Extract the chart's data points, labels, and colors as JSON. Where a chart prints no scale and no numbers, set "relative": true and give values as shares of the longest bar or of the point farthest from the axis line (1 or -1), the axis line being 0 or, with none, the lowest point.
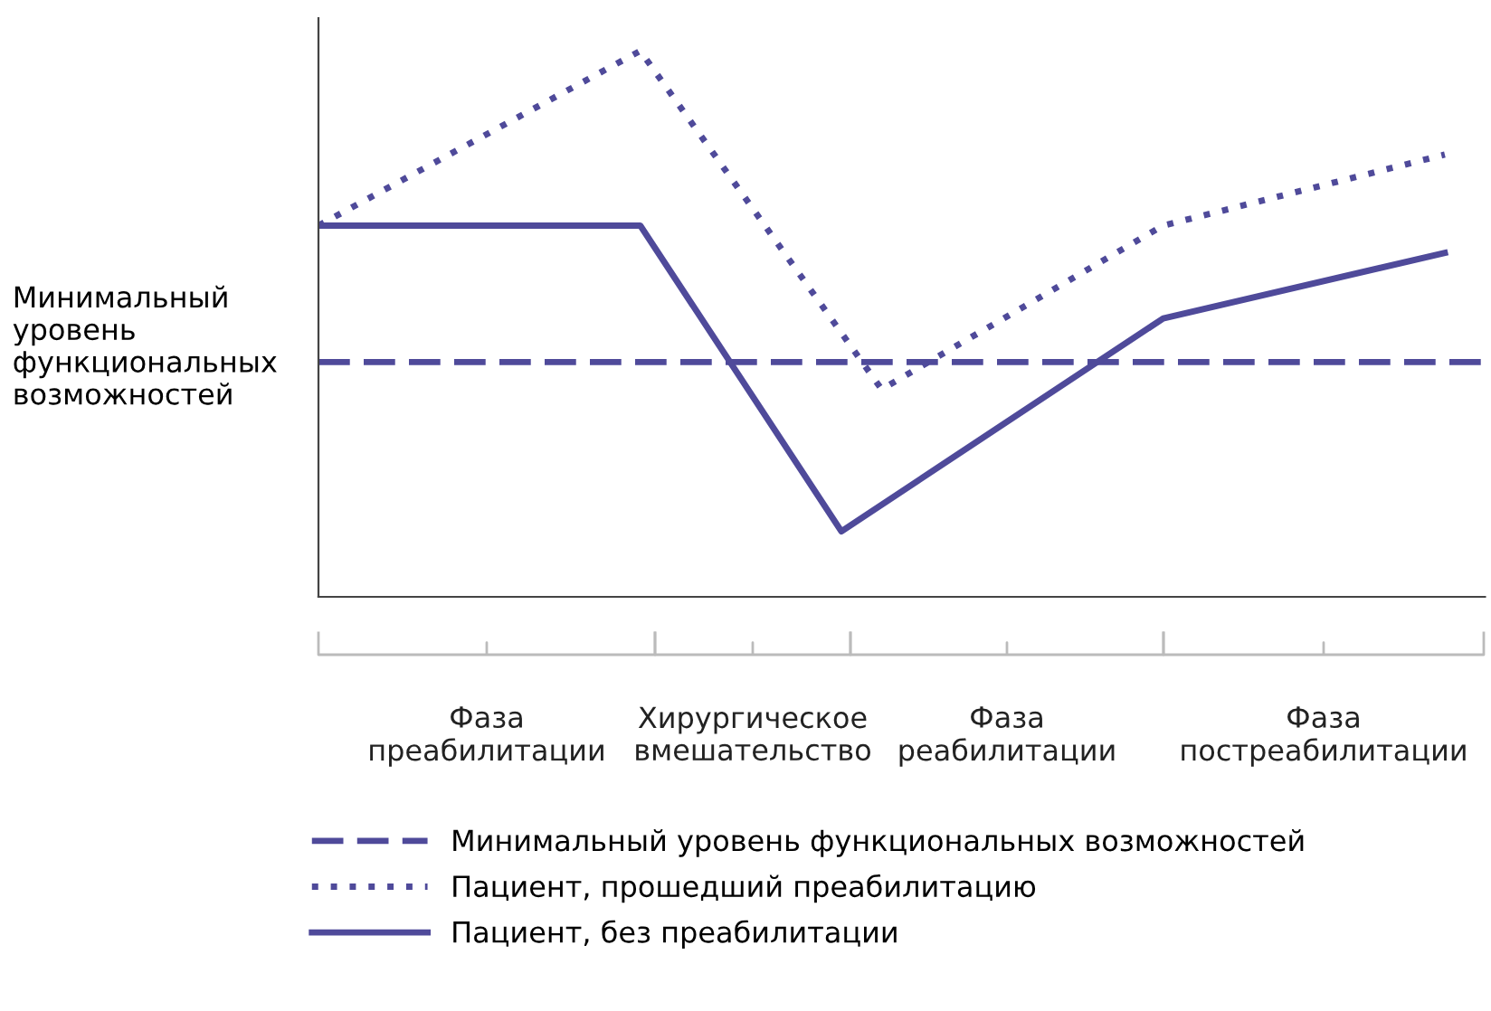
{
  "chart_data": {
    "type": "line",
    "relative": true,
    "legend": "bottom",
    "ylabel": "Минимальный уровень функциональных возможностей",
    "categories": [
      null,
      null,
      null,
      null,
      null,
      null,
      null,
      null,
      null,
      null,
      null,
      null,
      null,
      null,
      null,
      null,
      null,
      null,
      null,
      null,
      null,
      null,
      null,
      null,
      null,
      null,
      null,
      null,
      null,
      null
    ],
    "series": [
      {
        "name": "Минимальный уровень функциональных возможностей",
        "color": "#4f4a9a",
        "line_style": "dashed",
        "values": [
          0.43,
          null,
          null,
          null,
          null,
          null,
          null,
          null,
          null,
          null,
          null,
          null,
          null,
          null,
          null,
          null,
          null,
          null,
          null,
          null,
          null,
          null,
          null,
          null,
          null,
          null,
          null,
          null,
          null,
          0.43
        ]
      },
      {
        "name": "Пациент, прошедший преабилитацию",
        "color": "#4f4a9a",
        "line_style": "dotted",
        "values": [
          0.68,
          null,
          null,
          null,
          null,
          null,
          null,
          null,
          1,
          null,
          null,
          null,
          null,
          null,
          0.38,
          null,
          null,
          null,
          null,
          null,
          null,
          0.68,
          null,
          null,
          null,
          null,
          null,
          null,
          0.81,
          null
        ]
      },
      {
        "name": "Пациент, без преабилитации",
        "color": "#4f4a9a",
        "line_style": "solid",
        "values": [
          0.68,
          null,
          null,
          null,
          null,
          null,
          null,
          null,
          0.68,
          null,
          null,
          null,
          null,
          0.12,
          null,
          null,
          null,
          null,
          null,
          null,
          null,
          0.51,
          null,
          null,
          null,
          null,
          null,
          null,
          0.63,
          null
        ]
      }
    ],
    "annotations": [
      "Фаза\nпреабилитации",
      "Хирургическое\nвмешательство",
      "Фаза\nреабилитации",
      "Фаза\nпостреабилитации"
    ]
  }
}
